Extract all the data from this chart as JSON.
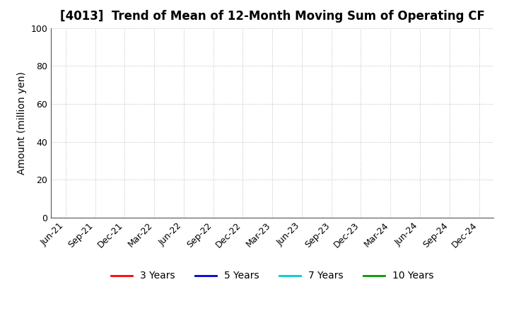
{
  "title": "[4013]  Trend of Mean of 12-Month Moving Sum of Operating CF",
  "ylabel": "Amount (million yen)",
  "ylim": [
    0,
    100
  ],
  "yticks": [
    0,
    20,
    40,
    60,
    80,
    100
  ],
  "x_tick_labels": [
    "Jun-21",
    "Sep-21",
    "Dec-21",
    "Mar-22",
    "Jun-22",
    "Sep-22",
    "Dec-22",
    "Mar-23",
    "Jun-23",
    "Sep-23",
    "Dec-23",
    "Mar-24",
    "Jun-24",
    "Sep-24",
    "Dec-24"
  ],
  "legend_entries": [
    {
      "label": "3 Years",
      "color": "#FF0000"
    },
    {
      "label": "5 Years",
      "color": "#0000CC"
    },
    {
      "label": "7 Years",
      "color": "#00CCCC"
    },
    {
      "label": "10 Years",
      "color": "#009900"
    }
  ],
  "background_color": "#FFFFFF",
  "grid_color_h": "#BBBBBB",
  "grid_color_v": "#BBBBBB",
  "title_fontsize": 12,
  "axis_label_fontsize": 10,
  "tick_fontsize": 9,
  "legend_fontsize": 10
}
